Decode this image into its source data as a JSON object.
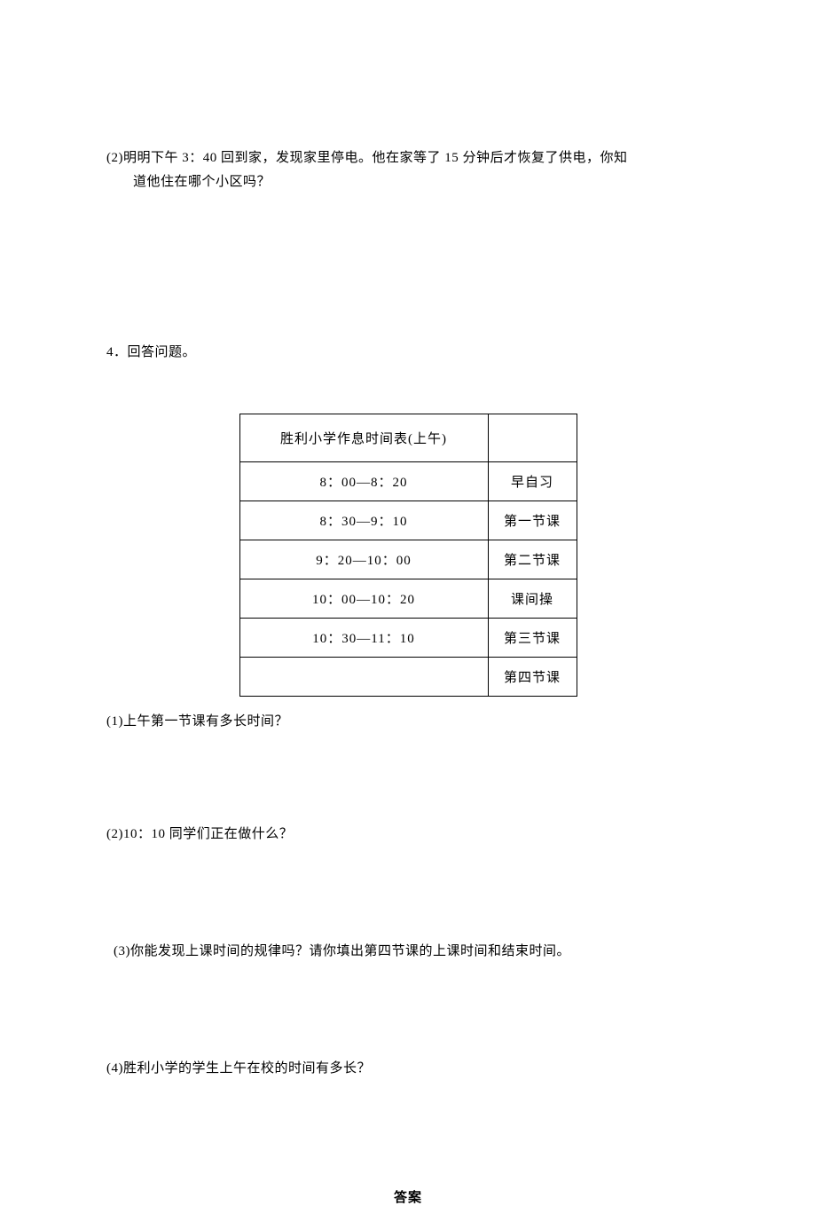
{
  "q2": {
    "line1": "(2)明明下午 3：40 回到家，发现家里停电。他在家等了 15 分钟后才恢复了供电，你知",
    "line2": "道他住在哪个小区吗？"
  },
  "q4_header": "4．回答问题。",
  "table": {
    "header_title": "胜利小学作息时间表(上午)",
    "border_color": "#000000",
    "background_color": "#ffffff",
    "text_color": "#000000",
    "font_size": 15,
    "col_time_width": 280,
    "col_activity_width": 100,
    "rows": [
      {
        "time": "8：00—8：20",
        "activity": "早自习"
      },
      {
        "time": "8：30—9：10",
        "activity": "第一节课"
      },
      {
        "time": "9：20—10：00",
        "activity": "第二节课"
      },
      {
        "time": "10：00—10：20",
        "activity": "课间操"
      },
      {
        "time": "10：30—11：10",
        "activity": "第三节课"
      },
      {
        "time": "",
        "activity": "第四节课"
      }
    ]
  },
  "sub_questions": {
    "sq1": "(1)上午第一节课有多长时间？",
    "sq2": "(2)10：10 同学们正在做什么？",
    "sq3": "(3)你能发现上课时间的规律吗？请你填出第四节课的上课时间和结束时间。",
    "sq4": "(4)胜利小学的学生上午在校的时间有多长？"
  },
  "answer_title": "答案"
}
